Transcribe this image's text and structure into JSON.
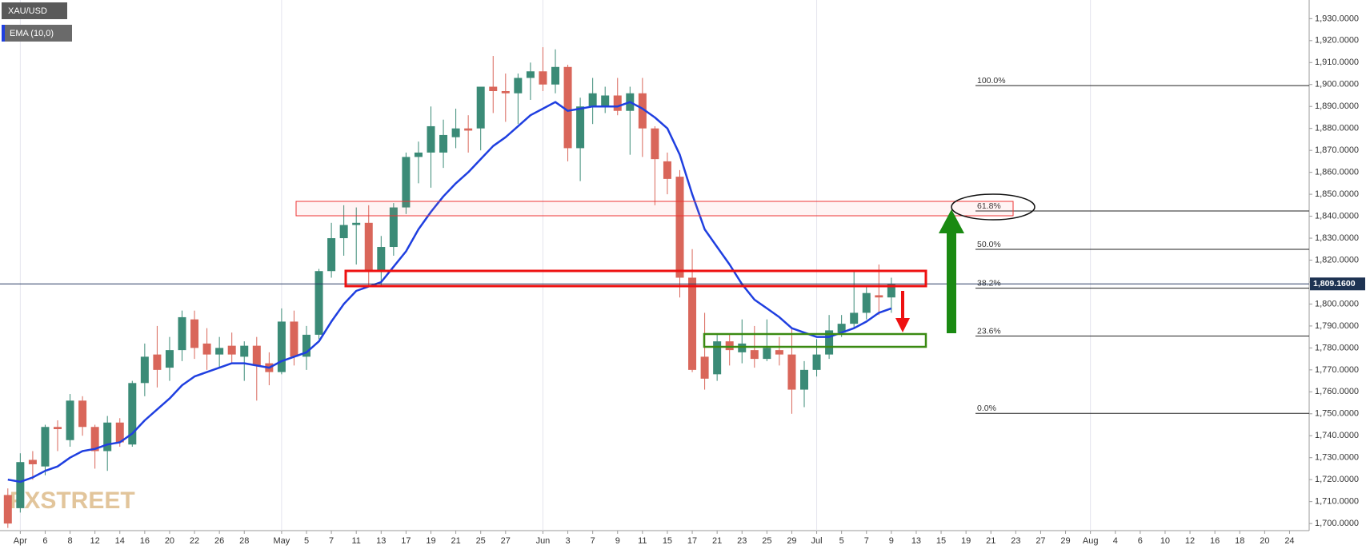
{
  "chart_data": {
    "type": "candlestick",
    "title": "XAU/USD",
    "categories": [
      null,
      "Apr",
      null,
      "6",
      null,
      "8",
      null,
      "12",
      null,
      "14",
      null,
      "16",
      null,
      "20",
      null,
      "22",
      null,
      "26",
      null,
      "28",
      null,
      null,
      "May",
      null,
      "5",
      null,
      "7",
      null,
      "11",
      null,
      "13",
      null,
      "17",
      null,
      "19",
      null,
      "21",
      null,
      "25",
      null,
      "27",
      null,
      null,
      "Jun",
      null,
      "3",
      null,
      "7",
      null,
      "9",
      null,
      "11",
      null,
      "15",
      null,
      "17",
      null,
      "21",
      null,
      "23",
      null,
      "25",
      null,
      "29",
      null,
      "Jul",
      null,
      "5",
      null,
      "7",
      null,
      "9",
      null,
      "13",
      null,
      "15",
      null,
      "19",
      null,
      "21",
      null,
      "23",
      null,
      "27",
      null,
      "29",
      null,
      "Aug",
      null,
      "4",
      null,
      "6",
      null,
      "10",
      null,
      "12",
      null,
      "16",
      null,
      "18",
      null,
      "20",
      null,
      "24",
      null
    ],
    "open": [
      1713,
      1707,
      1729,
      1726,
      1744,
      1738,
      1756,
      1744,
      1733,
      1746,
      1736,
      1764,
      1777,
      1771,
      1779,
      1793,
      1782,
      1777,
      1781,
      1776,
      1781,
      1773,
      1769,
      1792,
      1776,
      1786,
      1815,
      1830,
      1836,
      1837,
      1815,
      1826,
      1844,
      1867,
      1869,
      1869,
      1876,
      1880,
      1880,
      1899,
      1897,
      1896,
      1903,
      1906,
      1900,
      1908,
      1871,
      1890,
      1890,
      1895,
      1888,
      1896,
      1880,
      1865,
      1858,
      1812,
      1776,
      1768,
      1783,
      1778,
      1779,
      1775,
      1779,
      1777,
      1761,
      1770,
      1777,
      1787,
      1791,
      1796,
      1804,
      1803,
      null,
      null,
      null,
      null,
      null,
      null,
      null,
      null,
      null,
      null,
      null,
      null,
      null,
      null,
      null,
      null,
      null,
      null,
      null,
      null,
      null,
      null,
      null,
      null,
      null,
      null,
      null,
      null,
      null,
      null,
      null,
      null,
      null
    ],
    "high": [
      1716,
      1732,
      1733,
      1745,
      1747,
      1759,
      1758,
      1745,
      1749,
      1748,
      1765,
      1782,
      1790,
      1785,
      1797,
      1797,
      1789,
      1785,
      1787,
      1783,
      1785,
      1778,
      1798,
      1797,
      1790,
      1816,
      1837,
      1845,
      1844,
      1845,
      1831,
      1846,
      1869,
      1874,
      1890,
      1884,
      1889,
      1886,
      1899,
      1913,
      1905,
      1905,
      1910,
      1917,
      1916,
      1909,
      1894,
      1903,
      1899,
      1903,
      1899,
      1903,
      1881,
      1869,
      1861,
      1825,
      1796,
      1786,
      1786,
      1793,
      1790,
      1793,
      1785,
      1789,
      1774,
      1784,
      1795,
      1795,
      1815,
      1808,
      1818,
      1812,
      null,
      null,
      null,
      null,
      null,
      null,
      null,
      null,
      null,
      null,
      null,
      null,
      null,
      null,
      null,
      null,
      null,
      null,
      null,
      null,
      null,
      null,
      null,
      null,
      null,
      null,
      null,
      null,
      null,
      null,
      null,
      null,
      null
    ],
    "low": [
      1698,
      1705,
      1720,
      1722,
      1733,
      1735,
      1740,
      1725,
      1724,
      1735,
      1735,
      1758,
      1762,
      1765,
      1774,
      1775,
      1770,
      1771,
      1773,
      1765,
      1756,
      1763,
      1768,
      1772,
      1770,
      1784,
      1812,
      1822,
      1818,
      1808,
      1808,
      1822,
      1841,
      1855,
      1853,
      1862,
      1871,
      1869,
      1870,
      1887,
      1883,
      1882,
      1893,
      1897,
      1896,
      1865,
      1856,
      1882,
      1887,
      1886,
      1868,
      1867,
      1845,
      1850,
      1803,
      1769,
      1761,
      1765,
      1772,
      1773,
      1771,
      1774,
      1772,
      1750,
      1753,
      1767,
      1775,
      1785,
      1789,
      1793,
      1795,
      1796,
      null,
      null,
      null,
      null,
      null,
      null,
      null,
      null,
      null,
      null,
      null,
      null,
      null,
      null,
      null,
      null,
      null,
      null,
      null,
      null,
      null,
      null,
      null,
      null,
      null,
      null,
      null,
      null,
      null,
      null,
      null,
      null,
      null
    ],
    "close": [
      1700,
      1728,
      1727,
      1744,
      1743,
      1756,
      1744,
      1733,
      1746,
      1737,
      1764,
      1776,
      1770,
      1779,
      1794,
      1780,
      1777,
      1780,
      1777,
      1781,
      1772,
      1769,
      1792,
      1776,
      1786,
      1815,
      1830,
      1836,
      1837,
      1815,
      1826,
      1844,
      1867,
      1869,
      1881,
      1877,
      1880,
      1879,
      1899,
      1897,
      1896,
      1903,
      1906,
      1900,
      1908,
      1871,
      1890,
      1896,
      1895,
      1888,
      1896,
      1880,
      1866,
      1857,
      1812,
      1770,
      1766,
      1783,
      1779,
      1782,
      1775,
      1780,
      1777,
      1761,
      1770,
      1777,
      1788,
      1791,
      1796,
      1805,
      1803,
      1809,
      null,
      null,
      null,
      null,
      null,
      null,
      null,
      null,
      null,
      null,
      null,
      null,
      null,
      null,
      null,
      null,
      null,
      null,
      null,
      null,
      null,
      null,
      null,
      null,
      null,
      null,
      null,
      null,
      null,
      null,
      null,
      null,
      null
    ],
    "up_color": "#3b8b77",
    "down_color": "#d9665a",
    "indicator": {
      "name": "EMA (10,0)",
      "color": "#1f3fe0",
      "values": [
        1720,
        1719,
        1721,
        1724,
        1726,
        1730,
        1733,
        1734,
        1736,
        1737,
        1741,
        1747,
        1752,
        1757,
        1763,
        1767,
        1769,
        1771,
        1773,
        1773,
        1772,
        1771,
        1774,
        1776,
        1778,
        1783,
        1792,
        1800,
        1806,
        1808,
        1810,
        1817,
        1824,
        1834,
        1842,
        1849,
        1855,
        1860,
        1866,
        1872,
        1876,
        1881,
        1886,
        1889,
        1892,
        1888,
        1889,
        1890,
        1890,
        1890,
        1892,
        1889,
        1885,
        1880,
        1868,
        1850,
        1834,
        1826,
        1818,
        1809,
        1802,
        1798,
        1794,
        1789,
        1787,
        1785,
        1785,
        1787,
        1789,
        1792,
        1796,
        1798,
        null,
        null,
        null,
        null,
        null,
        null,
        null,
        null,
        null,
        null,
        null,
        null,
        null,
        null,
        null,
        null,
        null,
        null,
        null,
        null,
        null,
        null,
        null,
        null,
        null,
        null,
        null,
        null,
        null,
        null,
        null,
        null,
        null
      ]
    },
    "ylim": [
      1697.5,
      1938.5
    ],
    "yticks": [
      {
        "value": 1700,
        "label": "1,700.0000"
      },
      {
        "value": 1710,
        "label": "1,710.0000"
      },
      {
        "value": 1720,
        "label": "1,720.0000"
      },
      {
        "value": 1730,
        "label": "1,730.0000"
      },
      {
        "value": 1740,
        "label": "1,740.0000"
      },
      {
        "value": 1750,
        "label": "1,750.0000"
      },
      {
        "value": 1760,
        "label": "1,760.0000"
      },
      {
        "value": 1770,
        "label": "1,770.0000"
      },
      {
        "value": 1780,
        "label": "1,780.0000"
      },
      {
        "value": 1790,
        "label": "1,790.0000"
      },
      {
        "value": 1800,
        "label": "1,800.0000"
      },
      {
        "value": 1810,
        "label": "1,810.0000"
      },
      {
        "value": 1820,
        "label": "1,820.0000"
      },
      {
        "value": 1830,
        "label": "1,830.0000"
      },
      {
        "value": 1840,
        "label": "1,840.0000"
      },
      {
        "value": 1850,
        "label": "1,850.0000"
      },
      {
        "value": 1860,
        "label": "1,860.0000"
      },
      {
        "value": 1870,
        "label": "1,870.0000"
      },
      {
        "value": 1880,
        "label": "1,880.0000"
      },
      {
        "value": 1890,
        "label": "1,890.0000"
      },
      {
        "value": 1900,
        "label": "1,900.0000"
      },
      {
        "value": 1910,
        "label": "1,910.0000"
      },
      {
        "value": 1920,
        "label": "1,920.0000"
      },
      {
        "value": 1930,
        "label": "1,930.0000"
      }
    ],
    "fib_levels": [
      {
        "label": "100.0%",
        "value": 1899.5
      },
      {
        "label": "61.8%",
        "value": 1842.4
      },
      {
        "label": "50.0%",
        "value": 1824.9
      },
      {
        "label": "38.2%",
        "value": 1807.2
      },
      {
        "label": "23.6%",
        "value": 1785.4
      },
      {
        "label": "0.0%",
        "value": 1750.2
      }
    ],
    "last_price": {
      "value": 1809.16,
      "label": "1,809.1600"
    },
    "watermark": "FXSTREET"
  }
}
